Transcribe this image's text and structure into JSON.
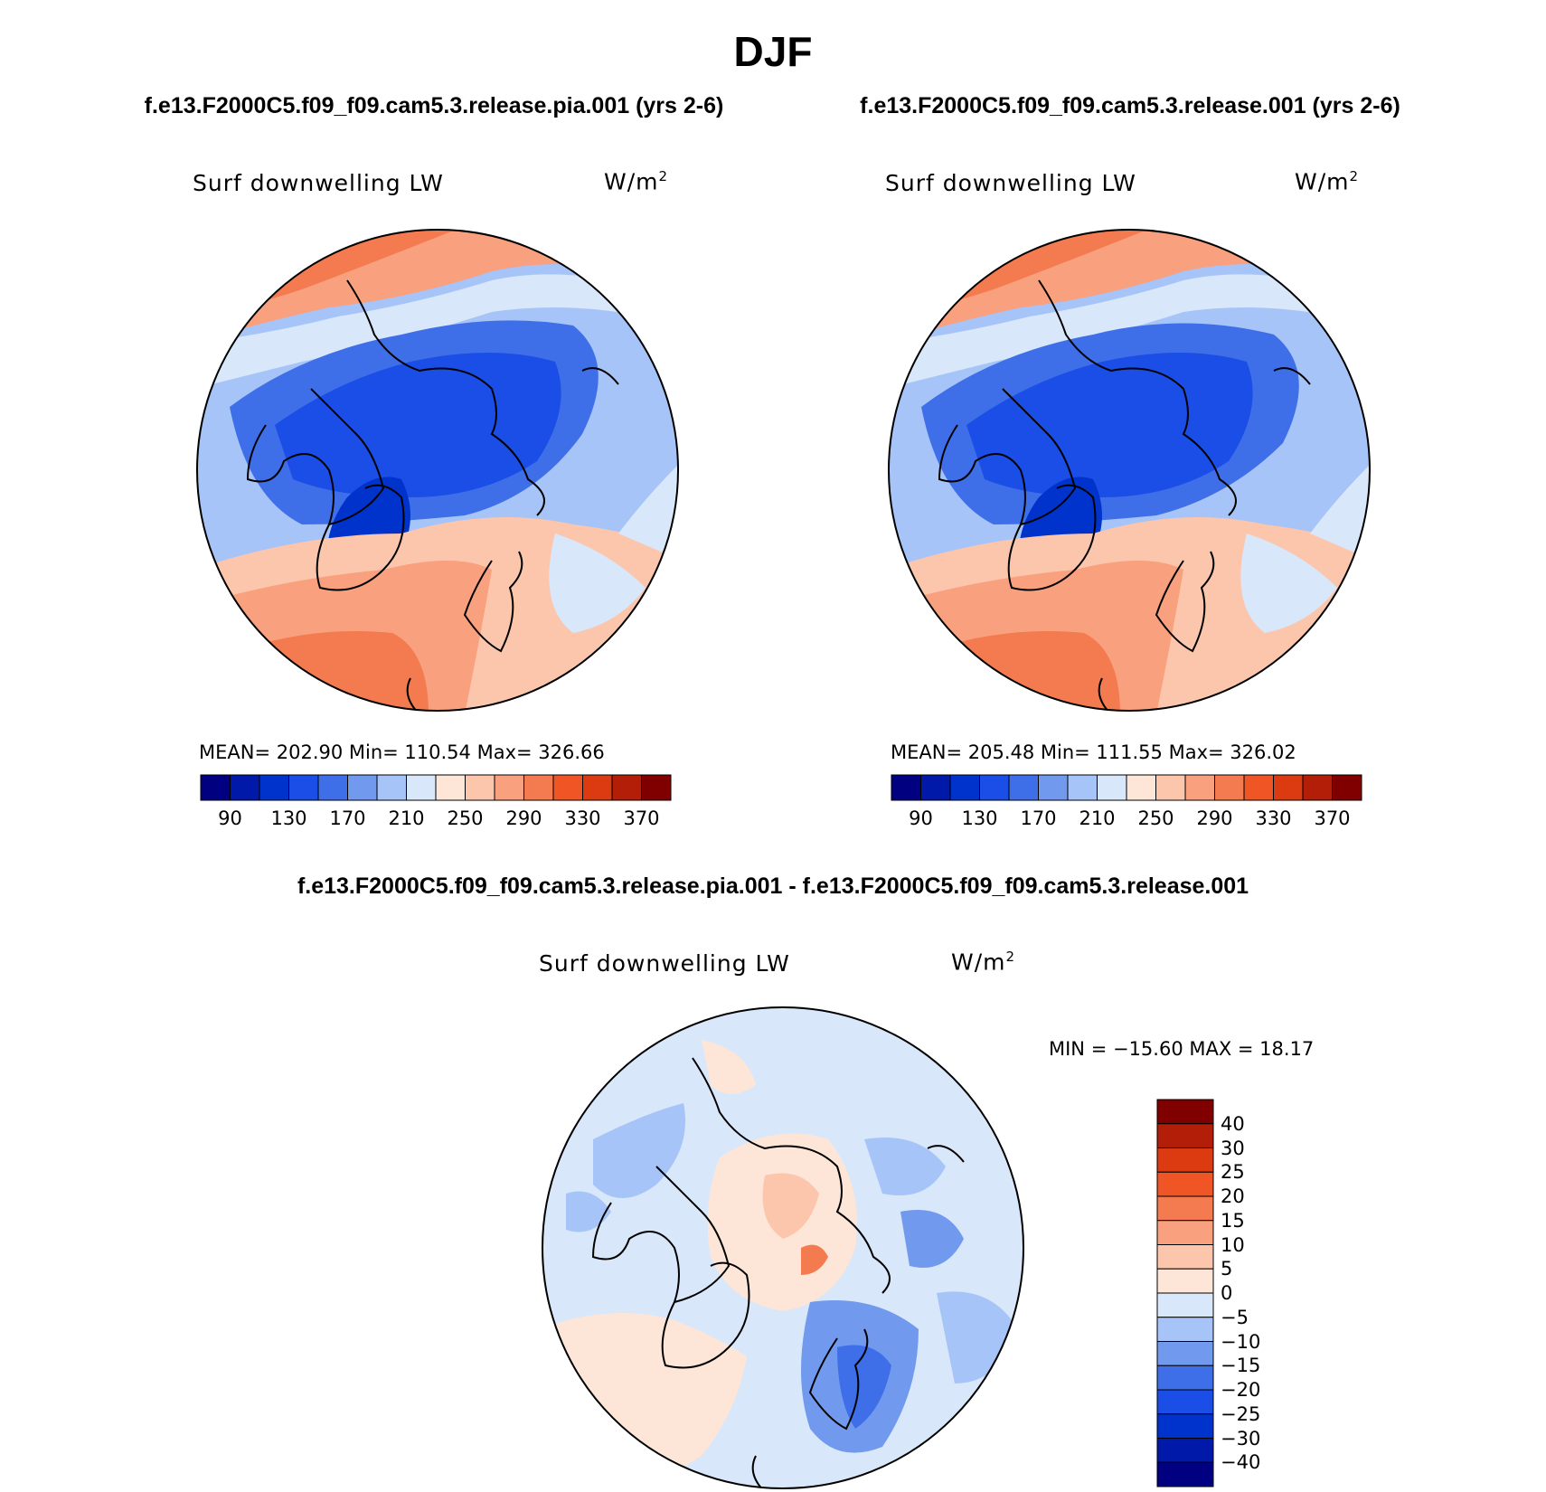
{
  "title": "DJF",
  "panels": [
    {
      "id": "left",
      "case_title": "f.e13.F2000C5.f09_f09.cam5.3.release.pia.001 (yrs 2-6)",
      "variable": "Surf downwelling LW",
      "units": "W/m",
      "units_exp": "2",
      "stats": "MEAN= 202.90   Min= 110.54   Max= 326.66"
    },
    {
      "id": "right",
      "case_title": "f.e13.F2000C5.f09_f09.cam5.3.release.001 (yrs 2-6)",
      "variable": "Surf downwelling LW",
      "units": "W/m",
      "units_exp": "2",
      "stats": "MEAN= 205.48   Min= 111.55   Max= 326.02"
    }
  ],
  "colorbar": {
    "colors": [
      "#000080",
      "#0019a8",
      "#0033cc",
      "#1a4ee6",
      "#3f6fe8",
      "#7199ee",
      "#a6c4f7",
      "#d8e7fa",
      "#fde6d8",
      "#fcc6ad",
      "#f9a07e",
      "#f47a4f",
      "#f05525",
      "#dc3a10",
      "#b21e08",
      "#800000"
    ],
    "tick_labels": [
      "90",
      "130",
      "170",
      "210",
      "250",
      "290",
      "330",
      "370"
    ]
  },
  "diff_panel": {
    "case_title": "f.e13.F2000C5.f09_f09.cam5.3.release.pia.001 - f.e13.F2000C5.f09_f09.cam5.3.release.001",
    "variable": "Surf downwelling LW",
    "units": "W/m",
    "units_exp": "2",
    "stats": "MIN = −15.60 MAX =  18.17",
    "colorbar": {
      "colors": [
        "#800000",
        "#b21e08",
        "#dc3a10",
        "#f05525",
        "#f47a4f",
        "#f9a07e",
        "#fcc6ad",
        "#fde6d8",
        "#d8e7fa",
        "#a6c4f7",
        "#7199ee",
        "#3f6fe8",
        "#1a4ee6",
        "#0033cc",
        "#0019a8",
        "#000080"
      ],
      "tick_labels": [
        "40",
        "30",
        "25",
        "20",
        "15",
        "10",
        "5",
        "0",
        "−5",
        "−10",
        "−15",
        "−20",
        "−25",
        "−30",
        "−40"
      ]
    }
  }
}
